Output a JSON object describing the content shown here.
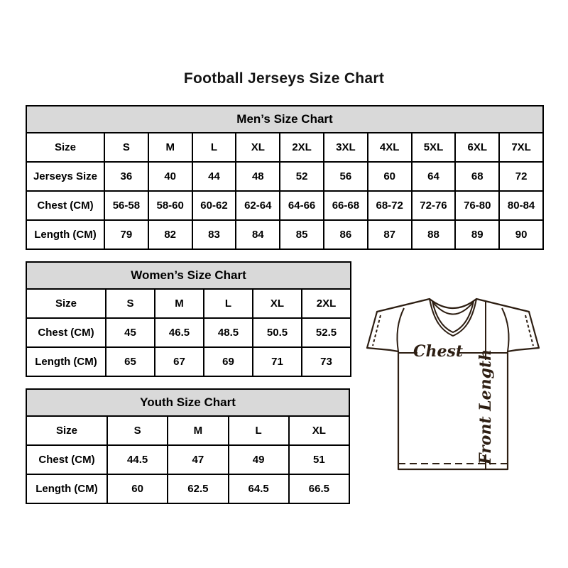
{
  "page_title": "Football Jerseys Size Chart",
  "colors": {
    "table_header_bg": "#d9d9d9",
    "table_border": "#000000",
    "jersey_line": "#2d1e12",
    "background": "#ffffff",
    "text": "#000000"
  },
  "chart_data": [
    {
      "type": "table",
      "title": "Men’s Size Chart",
      "grid": [
        [
          "Size",
          "S",
          "M",
          "L",
          "XL",
          "2XL",
          "3XL",
          "4XL",
          "5XL",
          "6XL",
          "7XL"
        ],
        [
          "Jerseys Size",
          "36",
          "40",
          "44",
          "48",
          "52",
          "56",
          "60",
          "64",
          "68",
          "72"
        ],
        [
          "Chest (CM)",
          "56-58",
          "58-60",
          "60-62",
          "62-64",
          "64-66",
          "66-68",
          "68-72",
          "72-76",
          "76-80",
          "80-84"
        ],
        [
          "Length (CM)",
          "79",
          "82",
          "83",
          "84",
          "85",
          "86",
          "87",
          "88",
          "89",
          "90"
        ]
      ]
    },
    {
      "type": "table",
      "title": "Women’s Size Chart",
      "grid": [
        [
          "Size",
          "S",
          "M",
          "L",
          "XL",
          "2XL"
        ],
        [
          "Chest (CM)",
          "45",
          "46.5",
          "48.5",
          "50.5",
          "52.5"
        ],
        [
          "Length (CM)",
          "65",
          "67",
          "69",
          "71",
          "73"
        ]
      ]
    },
    {
      "type": "table",
      "title": "Youth Size Chart",
      "grid": [
        [
          "Size",
          "S",
          "M",
          "L",
          "XL"
        ],
        [
          "Chest (CM)",
          "44.5",
          "47",
          "49",
          "51"
        ],
        [
          "Length (CM)",
          "60",
          "62.5",
          "64.5",
          "66.5"
        ]
      ]
    }
  ],
  "diagram": {
    "chest_label": "Chest",
    "front_length_label": "Front Length"
  }
}
